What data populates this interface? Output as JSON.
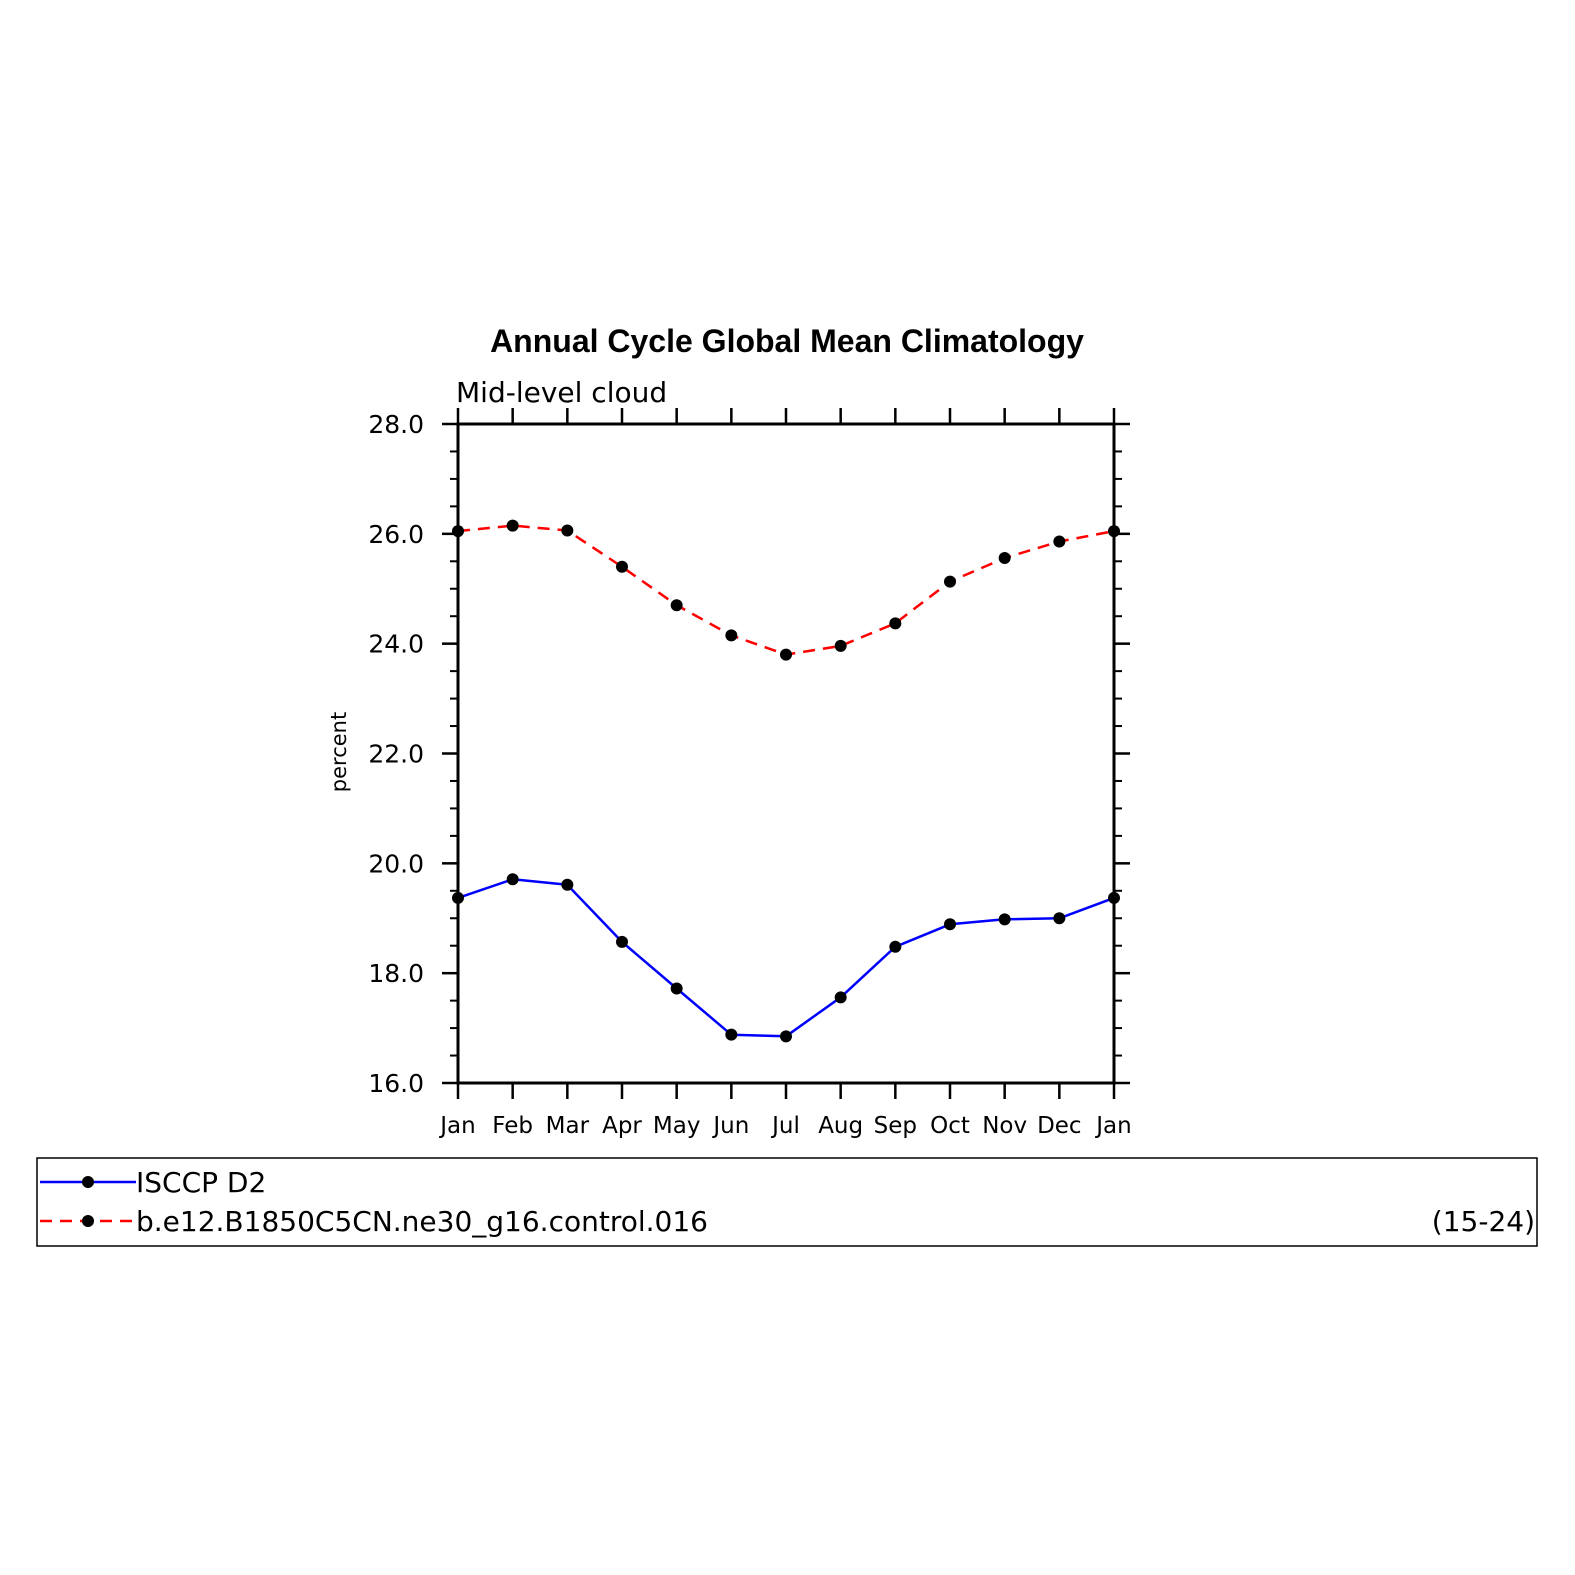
{
  "chart_data": {
    "type": "line",
    "title": "Annual Cycle Global Mean Climatology",
    "subtitle": "Mid-level cloud",
    "xlabel": "",
    "ylabel": "percent",
    "categories": [
      "Jan",
      "Feb",
      "Mar",
      "Apr",
      "May",
      "Jun",
      "Jul",
      "Aug",
      "Sep",
      "Oct",
      "Nov",
      "Dec",
      "Jan"
    ],
    "ylim": [
      16.0,
      28.0
    ],
    "yticks": [
      "16.0",
      "18.0",
      "20.0",
      "22.0",
      "24.0",
      "26.0",
      "28.0"
    ],
    "grid": false,
    "legend_position": "bottom",
    "series": [
      {
        "name": "ISCCP D2",
        "color": "#0000ff",
        "dash": "solid",
        "marker": "dot",
        "values": [
          19.37,
          19.71,
          19.61,
          18.57,
          17.72,
          16.88,
          16.85,
          17.56,
          18.48,
          18.89,
          18.98,
          19.0,
          19.37
        ]
      },
      {
        "name": "b.e12.B1850C5CN.ne30_g16.control.016",
        "annotation": "(15-24)",
        "color": "#ff0000",
        "dash": "dashed",
        "marker": "dot",
        "values": [
          26.05,
          26.15,
          26.06,
          25.4,
          24.7,
          24.15,
          23.8,
          23.96,
          24.37,
          25.13,
          25.56,
          25.86,
          26.05
        ]
      }
    ]
  }
}
